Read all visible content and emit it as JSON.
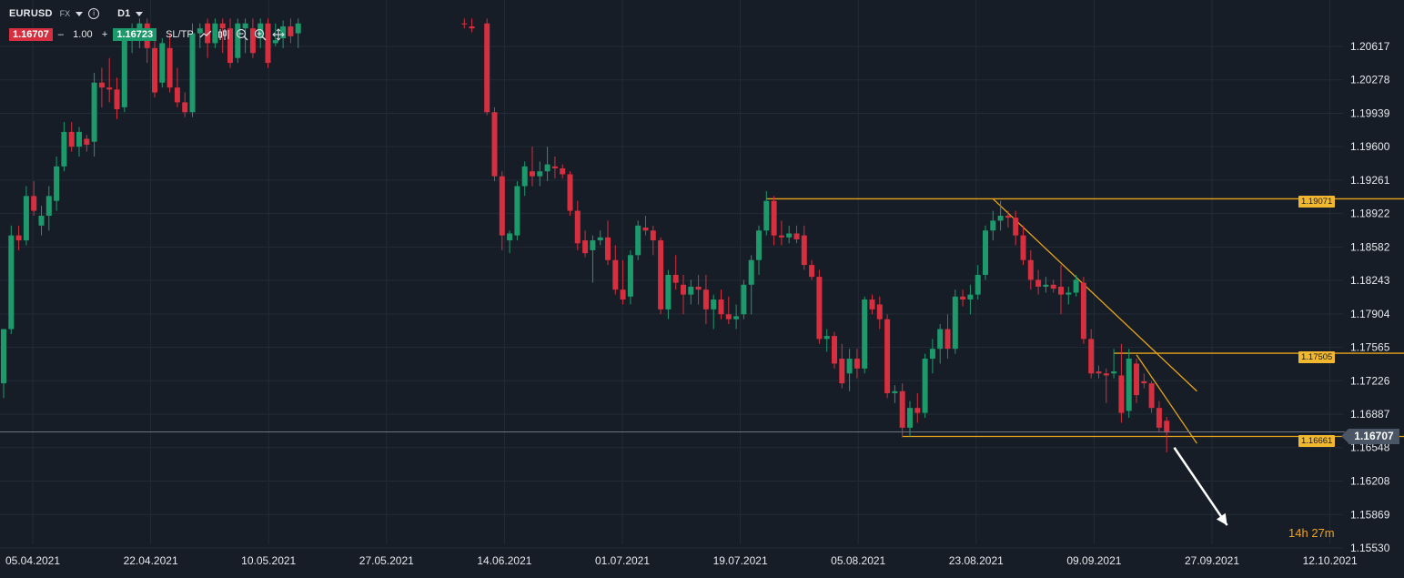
{
  "toolbar": {
    "symbol": "EURUSD",
    "market": "FX",
    "timeframe": "D1",
    "sell_price": "1.16707",
    "quantity": "1.00",
    "buy_price": "1.16723",
    "sl_tp_label": "SL/TP",
    "minus_label": "–",
    "plus_label": "+"
  },
  "price_tags": {
    "resistance": "1.19071",
    "mid": "1.17505",
    "support": "1.16661",
    "current": "1.16707"
  },
  "timer": {
    "hours": "14",
    "hours_unit": "h",
    "minutes": "27",
    "minutes_unit": "m"
  },
  "colors": {
    "background": "#161d26",
    "up": "#1d9a6c",
    "down": "#d62f3f",
    "trendline": "#e8a51a",
    "arrow": "#ffffff",
    "grid": "#222b36"
  },
  "chart_data": {
    "type": "candlestick",
    "symbol": "EURUSD",
    "timeframe": "D1",
    "y_ticks": [
      "1.20617",
      "1.20278",
      "1.19939",
      "1.19600",
      "1.19261",
      "1.18922",
      "1.18582",
      "1.18243",
      "1.17904",
      "1.17565",
      "1.17226",
      "1.16887",
      "1.16548",
      "1.16208",
      "1.15869",
      "1.15530"
    ],
    "x_ticks": [
      "05.04.2021",
      "22.04.2021",
      "10.05.2021",
      "27.05.2021",
      "14.06.2021",
      "01.07.2021",
      "19.07.2021",
      "05.08.2021",
      "23.08.2021",
      "09.09.2021",
      "27.09.2021",
      "12.10.2021"
    ],
    "ylim": [
      1.1553,
      1.2085
    ],
    "xlim": [
      0,
      236
    ],
    "current_price": 1.16707,
    "candles": [
      {
        "i": 0,
        "o": 1.172,
        "h": 1.1775,
        "l": 1.1705,
        "c": 1.1775
      },
      {
        "i": 1,
        "o": 1.1775,
        "h": 1.188,
        "l": 1.177,
        "c": 1.187
      },
      {
        "i": 2,
        "o": 1.187,
        "h": 1.188,
        "l": 1.1855,
        "c": 1.1865
      },
      {
        "i": 3,
        "o": 1.1865,
        "h": 1.192,
        "l": 1.186,
        "c": 1.191
      },
      {
        "i": 4,
        "o": 1.191,
        "h": 1.1925,
        "l": 1.189,
        "c": 1.1895
      },
      {
        "i": 5,
        "o": 1.188,
        "h": 1.19,
        "l": 1.187,
        "c": 1.189
      },
      {
        "i": 6,
        "o": 1.189,
        "h": 1.192,
        "l": 1.1875,
        "c": 1.191
      },
      {
        "i": 7,
        "o": 1.1905,
        "h": 1.195,
        "l": 1.1895,
        "c": 1.194
      },
      {
        "i": 8,
        "o": 1.194,
        "h": 1.1985,
        "l": 1.1935,
        "c": 1.1975
      },
      {
        "i": 9,
        "o": 1.1975,
        "h": 1.1985,
        "l": 1.1955,
        "c": 1.196
      },
      {
        "i": 10,
        "o": 1.196,
        "h": 1.198,
        "l": 1.195,
        "c": 1.1975
      },
      {
        "i": 11,
        "o": 1.1968,
        "h": 1.1972,
        "l": 1.1955,
        "c": 1.1962
      },
      {
        "i": 12,
        "o": 1.1965,
        "h": 1.2035,
        "l": 1.195,
        "c": 1.2025
      },
      {
        "i": 13,
        "o": 1.2025,
        "h": 1.204,
        "l": 1.2,
        "c": 1.202
      },
      {
        "i": 14,
        "o": 1.202,
        "h": 1.205,
        "l": 1.2005,
        "c": 1.2018
      },
      {
        "i": 15,
        "o": 1.2018,
        "h": 1.203,
        "l": 1.1988,
        "c": 1.1998
      },
      {
        "i": 16,
        "o": 1.2,
        "h": 1.208,
        "l": 1.1995,
        "c": 1.207
      },
      {
        "i": 17,
        "o": 1.207,
        "h": 1.2085,
        "l": 1.2055,
        "c": 1.2075
      },
      {
        "i": 18,
        "o": 1.208,
        "h": 1.209,
        "l": 1.206,
        "c": 1.2085
      },
      {
        "i": 19,
        "o": 1.2085,
        "h": 1.209,
        "l": 1.2045,
        "c": 1.206
      },
      {
        "i": 20,
        "o": 1.206,
        "h": 1.2075,
        "l": 1.201,
        "c": 1.2015
      },
      {
        "i": 21,
        "o": 1.2025,
        "h": 1.207,
        "l": 1.202,
        "c": 1.2065
      },
      {
        "i": 22,
        "o": 1.206,
        "h": 1.2075,
        "l": 1.2015,
        "c": 1.202
      },
      {
        "i": 23,
        "o": 1.202,
        "h": 1.204,
        "l": 1.2,
        "c": 1.2005
      },
      {
        "i": 24,
        "o": 1.2005,
        "h": 1.2015,
        "l": 1.199,
        "c": 1.1995
      },
      {
        "i": 25,
        "o": 1.1995,
        "h": 1.2085,
        "l": 1.199,
        "c": 1.2075
      },
      {
        "i": 26,
        "o": 1.2075,
        "h": 1.2085,
        "l": 1.206,
        "c": 1.208
      },
      {
        "i": 27,
        "o": 1.2085,
        "h": 1.209,
        "l": 1.205,
        "c": 1.2065
      },
      {
        "i": 28,
        "o": 1.2065,
        "h": 1.209,
        "l": 1.206,
        "c": 1.2085
      },
      {
        "i": 29,
        "o": 1.2085,
        "h": 1.209,
        "l": 1.2055,
        "c": 1.208
      },
      {
        "i": 30,
        "o": 1.208,
        "h": 1.209,
        "l": 1.204,
        "c": 1.2045
      },
      {
        "i": 31,
        "o": 1.205,
        "h": 1.209,
        "l": 1.2045,
        "c": 1.2085
      },
      {
        "i": 32,
        "o": 1.208,
        "h": 1.209,
        "l": 1.2055,
        "c": 1.2085
      },
      {
        "i": 33,
        "o": 1.208,
        "h": 1.209,
        "l": 1.205,
        "c": 1.2055
      },
      {
        "i": 34,
        "o": 1.207,
        "h": 1.209,
        "l": 1.206,
        "c": 1.2085
      },
      {
        "i": 35,
        "o": 1.2085,
        "h": 1.209,
        "l": 1.204,
        "c": 1.2045
      },
      {
        "i": 36,
        "o": 1.2065,
        "h": 1.2085,
        "l": 1.2062,
        "c": 1.2068
      },
      {
        "i": 37,
        "o": 1.207,
        "h": 1.2088,
        "l": 1.206,
        "c": 1.2082
      },
      {
        "i": 38,
        "o": 1.2082,
        "h": 1.209,
        "l": 1.2065,
        "c": 1.2072
      },
      {
        "i": 39,
        "o": 1.2075,
        "h": 1.209,
        "l": 1.206,
        "c": 1.2085
      },
      {
        "i": 61,
        "o": 1.2085,
        "h": 1.209,
        "l": 1.208,
        "c": 1.2084
      },
      {
        "i": 62,
        "o": 1.2082,
        "h": 1.209,
        "l": 1.2076,
        "c": 1.208
      },
      {
        "i": 64,
        "o": 1.2085,
        "h": 1.209,
        "l": 1.1992,
        "c": 1.1995
      },
      {
        "i": 65,
        "o": 1.1995,
        "h": 1.2,
        "l": 1.1925,
        "c": 1.193
      },
      {
        "i": 66,
        "o": 1.193,
        "h": 1.1935,
        "l": 1.1855,
        "c": 1.187
      },
      {
        "i": 67,
        "o": 1.1865,
        "h": 1.1875,
        "l": 1.1852,
        "c": 1.1872
      },
      {
        "i": 68,
        "o": 1.187,
        "h": 1.1925,
        "l": 1.1865,
        "c": 1.192
      },
      {
        "i": 69,
        "o": 1.192,
        "h": 1.1945,
        "l": 1.191,
        "c": 1.194
      },
      {
        "i": 70,
        "o": 1.1935,
        "h": 1.196,
        "l": 1.192,
        "c": 1.193
      },
      {
        "i": 71,
        "o": 1.193,
        "h": 1.1945,
        "l": 1.192,
        "c": 1.1935
      },
      {
        "i": 72,
        "o": 1.1935,
        "h": 1.196,
        "l": 1.1925,
        "c": 1.1942
      },
      {
        "i": 73,
        "o": 1.194,
        "h": 1.195,
        "l": 1.1928,
        "c": 1.1938
      },
      {
        "i": 74,
        "o": 1.1938,
        "h": 1.1942,
        "l": 1.1928,
        "c": 1.1932
      },
      {
        "i": 75,
        "o": 1.1932,
        "h": 1.1935,
        "l": 1.189,
        "c": 1.1895
      },
      {
        "i": 76,
        "o": 1.1895,
        "h": 1.1905,
        "l": 1.1855,
        "c": 1.1862
      },
      {
        "i": 77,
        "o": 1.1865,
        "h": 1.1875,
        "l": 1.1848,
        "c": 1.1852
      },
      {
        "i": 78,
        "o": 1.1855,
        "h": 1.187,
        "l": 1.1822,
        "c": 1.1865
      },
      {
        "i": 79,
        "o": 1.1865,
        "h": 1.1875,
        "l": 1.186,
        "c": 1.1868
      },
      {
        "i": 80,
        "o": 1.1868,
        "h": 1.1885,
        "l": 1.184,
        "c": 1.1845
      },
      {
        "i": 81,
        "o": 1.1845,
        "h": 1.186,
        "l": 1.181,
        "c": 1.1815
      },
      {
        "i": 82,
        "o": 1.1815,
        "h": 1.1845,
        "l": 1.18,
        "c": 1.1805
      },
      {
        "i": 83,
        "o": 1.1808,
        "h": 1.1855,
        "l": 1.18,
        "c": 1.185
      },
      {
        "i": 84,
        "o": 1.185,
        "h": 1.1885,
        "l": 1.1845,
        "c": 1.188
      },
      {
        "i": 85,
        "o": 1.1878,
        "h": 1.189,
        "l": 1.187,
        "c": 1.1875
      },
      {
        "i": 86,
        "o": 1.1875,
        "h": 1.188,
        "l": 1.185,
        "c": 1.1865
      },
      {
        "i": 87,
        "o": 1.1865,
        "h": 1.1868,
        "l": 1.179,
        "c": 1.1795
      },
      {
        "i": 88,
        "o": 1.1795,
        "h": 1.1835,
        "l": 1.1785,
        "c": 1.183
      },
      {
        "i": 89,
        "o": 1.183,
        "h": 1.185,
        "l": 1.1815,
        "c": 1.1822
      },
      {
        "i": 90,
        "o": 1.182,
        "h": 1.183,
        "l": 1.179,
        "c": 1.181
      },
      {
        "i": 91,
        "o": 1.181,
        "h": 1.1825,
        "l": 1.18,
        "c": 1.1818
      },
      {
        "i": 92,
        "o": 1.1818,
        "h": 1.183,
        "l": 1.18,
        "c": 1.1815
      },
      {
        "i": 93,
        "o": 1.1815,
        "h": 1.183,
        "l": 1.178,
        "c": 1.1795
      },
      {
        "i": 94,
        "o": 1.1795,
        "h": 1.181,
        "l": 1.1775,
        "c": 1.1805
      },
      {
        "i": 95,
        "o": 1.1805,
        "h": 1.1815,
        "l": 1.1785,
        "c": 1.179
      },
      {
        "i": 96,
        "o": 1.179,
        "h": 1.1808,
        "l": 1.178,
        "c": 1.1785
      },
      {
        "i": 97,
        "o": 1.1785,
        "h": 1.18,
        "l": 1.1775,
        "c": 1.1788
      },
      {
        "i": 98,
        "o": 1.179,
        "h": 1.1825,
        "l": 1.1785,
        "c": 1.182
      },
      {
        "i": 99,
        "o": 1.182,
        "h": 1.185,
        "l": 1.179,
        "c": 1.1845
      },
      {
        "i": 100,
        "o": 1.1845,
        "h": 1.188,
        "l": 1.183,
        "c": 1.1875
      },
      {
        "i": 101,
        "o": 1.1875,
        "h": 1.1915,
        "l": 1.187,
        "c": 1.1905
      },
      {
        "i": 102,
        "o": 1.1905,
        "h": 1.191,
        "l": 1.186,
        "c": 1.187
      },
      {
        "i": 103,
        "o": 1.187,
        "h": 1.1885,
        "l": 1.186,
        "c": 1.1868
      },
      {
        "i": 104,
        "o": 1.1868,
        "h": 1.188,
        "l": 1.1862,
        "c": 1.1872
      },
      {
        "i": 105,
        "o": 1.1872,
        "h": 1.188,
        "l": 1.1862,
        "c": 1.1866
      },
      {
        "i": 106,
        "o": 1.187,
        "h": 1.188,
        "l": 1.1835,
        "c": 1.184
      },
      {
        "i": 107,
        "o": 1.184,
        "h": 1.1845,
        "l": 1.1825,
        "c": 1.1828
      },
      {
        "i": 108,
        "o": 1.1828,
        "h": 1.1835,
        "l": 1.176,
        "c": 1.1765
      },
      {
        "i": 109,
        "o": 1.1765,
        "h": 1.1775,
        "l": 1.1752,
        "c": 1.1768
      },
      {
        "i": 110,
        "o": 1.1768,
        "h": 1.1772,
        "l": 1.1735,
        "c": 1.174
      },
      {
        "i": 111,
        "o": 1.1745,
        "h": 1.176,
        "l": 1.1715,
        "c": 1.172
      },
      {
        "i": 112,
        "o": 1.173,
        "h": 1.1755,
        "l": 1.1712,
        "c": 1.1745
      },
      {
        "i": 113,
        "o": 1.1745,
        "h": 1.1755,
        "l": 1.1725,
        "c": 1.1735
      },
      {
        "i": 114,
        "o": 1.1735,
        "h": 1.1808,
        "l": 1.173,
        "c": 1.1805
      },
      {
        "i": 115,
        "o": 1.1805,
        "h": 1.181,
        "l": 1.179,
        "c": 1.1795
      },
      {
        "i": 116,
        "o": 1.18,
        "h": 1.1808,
        "l": 1.1775,
        "c": 1.1785
      },
      {
        "i": 117,
        "o": 1.1785,
        "h": 1.179,
        "l": 1.1705,
        "c": 1.171
      },
      {
        "i": 118,
        "o": 1.171,
        "h": 1.1718,
        "l": 1.17,
        "c": 1.1712
      },
      {
        "i": 119,
        "o": 1.1712,
        "h": 1.172,
        "l": 1.1665,
        "c": 1.1675
      },
      {
        "i": 120,
        "o": 1.1675,
        "h": 1.1702,
        "l": 1.1666,
        "c": 1.1695
      },
      {
        "i": 121,
        "o": 1.1695,
        "h": 1.171,
        "l": 1.168,
        "c": 1.169
      },
      {
        "i": 122,
        "o": 1.169,
        "h": 1.175,
        "l": 1.1685,
        "c": 1.1745
      },
      {
        "i": 123,
        "o": 1.1745,
        "h": 1.1765,
        "l": 1.173,
        "c": 1.1755
      },
      {
        "i": 124,
        "o": 1.1755,
        "h": 1.178,
        "l": 1.174,
        "c": 1.1775
      },
      {
        "i": 125,
        "o": 1.1775,
        "h": 1.179,
        "l": 1.1745,
        "c": 1.1755
      },
      {
        "i": 126,
        "o": 1.1755,
        "h": 1.1815,
        "l": 1.175,
        "c": 1.1808
      },
      {
        "i": 127,
        "o": 1.1808,
        "h": 1.1815,
        "l": 1.1798,
        "c": 1.1805
      },
      {
        "i": 128,
        "o": 1.1805,
        "h": 1.182,
        "l": 1.179,
        "c": 1.181
      },
      {
        "i": 129,
        "o": 1.181,
        "h": 1.184,
        "l": 1.1805,
        "c": 1.183
      },
      {
        "i": 130,
        "o": 1.183,
        "h": 1.188,
        "l": 1.1825,
        "c": 1.1875
      },
      {
        "i": 131,
        "o": 1.1875,
        "h": 1.1895,
        "l": 1.1865,
        "c": 1.1885
      },
      {
        "i": 132,
        "o": 1.1885,
        "h": 1.1905,
        "l": 1.1875,
        "c": 1.189
      },
      {
        "i": 133,
        "o": 1.189,
        "h": 1.1895,
        "l": 1.1878,
        "c": 1.1888
      },
      {
        "i": 134,
        "o": 1.1888,
        "h": 1.1895,
        "l": 1.186,
        "c": 1.187
      },
      {
        "i": 135,
        "o": 1.187,
        "h": 1.188,
        "l": 1.184,
        "c": 1.1845
      },
      {
        "i": 136,
        "o": 1.1845,
        "h": 1.1855,
        "l": 1.1815,
        "c": 1.1825
      },
      {
        "i": 137,
        "o": 1.1825,
        "h": 1.1835,
        "l": 1.181,
        "c": 1.1818
      },
      {
        "i": 138,
        "o": 1.1818,
        "h": 1.1828,
        "l": 1.1812,
        "c": 1.182
      },
      {
        "i": 139,
        "o": 1.182,
        "h": 1.1825,
        "l": 1.1812,
        "c": 1.1816
      },
      {
        "i": 140,
        "o": 1.1818,
        "h": 1.184,
        "l": 1.179,
        "c": 1.181
      },
      {
        "i": 141,
        "o": 1.181,
        "h": 1.1818,
        "l": 1.18,
        "c": 1.1812
      },
      {
        "i": 142,
        "o": 1.1812,
        "h": 1.183,
        "l": 1.1808,
        "c": 1.1825
      },
      {
        "i": 143,
        "o": 1.1822,
        "h": 1.1828,
        "l": 1.176,
        "c": 1.1765
      },
      {
        "i": 144,
        "o": 1.1765,
        "h": 1.1775,
        "l": 1.1725,
        "c": 1.173
      },
      {
        "i": 145,
        "o": 1.1732,
        "h": 1.1738,
        "l": 1.1725,
        "c": 1.173
      },
      {
        "i": 146,
        "o": 1.173,
        "h": 1.1735,
        "l": 1.17,
        "c": 1.1728
      },
      {
        "i": 147,
        "o": 1.173,
        "h": 1.1755,
        "l": 1.1725,
        "c": 1.1732
      },
      {
        "i": 148,
        "o": 1.1728,
        "h": 1.176,
        "l": 1.168,
        "c": 1.169
      },
      {
        "i": 149,
        "o": 1.1692,
        "h": 1.1755,
        "l": 1.1685,
        "c": 1.1745
      },
      {
        "i": 150,
        "o": 1.174,
        "h": 1.1745,
        "l": 1.17,
        "c": 1.1708
      },
      {
        "i": 151,
        "o": 1.1722,
        "h": 1.173,
        "l": 1.1715,
        "c": 1.172
      },
      {
        "i": 152,
        "o": 1.172,
        "h": 1.1722,
        "l": 1.169,
        "c": 1.1695
      },
      {
        "i": 153,
        "o": 1.1695,
        "h": 1.1702,
        "l": 1.167,
        "c": 1.1675
      },
      {
        "i": 154,
        "o": 1.1682,
        "h": 1.1686,
        "l": 1.165,
        "c": 1.167
      }
    ],
    "lines": [
      {
        "name": "resistance",
        "x1": 101,
        "y1": 1.19071,
        "x2": 215,
        "y2": 1.19071
      },
      {
        "name": "mid-level",
        "x1": 147,
        "y1": 1.17505,
        "x2": 215,
        "y2": 1.17505
      },
      {
        "name": "support",
        "x1": 119,
        "y1": 1.16661,
        "x2": 215,
        "y2": 1.16661
      },
      {
        "name": "downtrend-upper",
        "x1": 131,
        "y1": 1.19071,
        "x2": 158,
        "y2": 1.1712
      },
      {
        "name": "downtrend-lower",
        "x1": 150,
        "y1": 1.1749,
        "x2": 158,
        "y2": 1.1659
      }
    ],
    "arrow": {
      "x1": 155,
      "y1": 1.16548,
      "x2": 162,
      "y2": 1.1576
    }
  }
}
